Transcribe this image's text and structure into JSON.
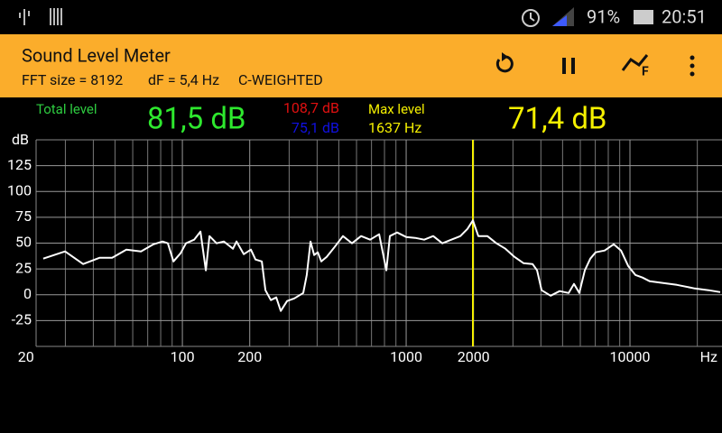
{
  "status_bar": {
    "battery": "91%",
    "time": "20:51"
  },
  "app_bar": {
    "title": "Sound Level Meter",
    "fft_size": "FFT size = 8192",
    "df": "dF = 5,4 Hz",
    "weighting": "C-WEIGHTED"
  },
  "readout": {
    "total_label": "Total level",
    "total_value": "81,5 dB",
    "max_db": "108,7 dB",
    "min_db": "75,1 dB",
    "max_label": "Max level",
    "max_freq": "1637 Hz",
    "max_value": "71,4 dB"
  },
  "chart_data": {
    "type": "line",
    "y_unit": "dB",
    "x_unit": "Hz",
    "log_x": true,
    "grid": true,
    "color": "#ffffff",
    "xlim": [
      22.2,
      25780
    ],
    "ylim": [
      -50,
      150
    ],
    "yticks": [
      -25,
      0,
      25,
      50,
      75,
      100,
      125
    ],
    "xticks": [
      20,
      100,
      200,
      1000,
      2000,
      10000
    ],
    "xgrid": [
      30,
      40,
      50,
      60,
      70,
      80,
      90,
      300,
      400,
      500,
      600,
      700,
      800,
      900,
      3000,
      4000,
      5000,
      6000,
      7000,
      8000,
      9000,
      20000
    ],
    "x": [
      23.9,
      29.9,
      36.0,
      42.6,
      48.5,
      56.2,
      65.3,
      74.3,
      81.5,
      86.1,
      91.2,
      98.2,
      103.8,
      112.8,
      120.4,
      127.3,
      132.1,
      142.2,
      153.1,
      168.2,
      174.6,
      188.0,
      202.4,
      212.1,
      226.4,
      235.0,
      248.5,
      262.6,
      275.2,
      293.6,
      316.2,
      346.7,
      359.7,
      374.0,
      388.0,
      402.6,
      417.7,
      441.6,
      475.5,
      522.0,
      572.8,
      628.6,
      690.0,
      756.9,
      815.3,
      845.7,
      911.3,
      1000,
      1097,
      1204,
      1321,
      1450,
      1591,
      1746,
      1880,
      1987,
      2101,
      2306,
      2530,
      2777,
      3047,
      3344,
      3670,
      3845,
      4027,
      4419,
      4849,
      5322,
      5623,
      5940,
      6283,
      6652,
      7025,
      7709,
      8460,
      9120,
      9818,
      10570,
      11380,
      12270,
      14090,
      16220,
      19500,
      22440,
      25300
    ],
    "values": [
      35.0,
      42.0,
      29.7,
      35.8,
      35.8,
      43.7,
      42.0,
      48.9,
      51.6,
      49.8,
      32.3,
      40.2,
      49.8,
      53.3,
      61.2,
      23.6,
      56.8,
      49.8,
      51.6,
      44.6,
      51.6,
      39.3,
      43.7,
      34.1,
      32.3,
      4.4,
      -5.2,
      -2.6,
      -15.7,
      -6.1,
      -3.5,
      1.7,
      19.2,
      51.6,
      38.5,
      41.1,
      32.3,
      36.7,
      45.4,
      56.8,
      49.8,
      56.8,
      53.3,
      58.6,
      23.6,
      56.8,
      60.3,
      55.9,
      55.1,
      53.3,
      56.8,
      49.8,
      53.3,
      56.8,
      63.8,
      72.0,
      56.8,
      56.8,
      49.8,
      44.6,
      36.7,
      30.6,
      29.7,
      23.6,
      4.4,
      -0.9,
      3.5,
      1.7,
      10.5,
      1.7,
      23.6,
      35.0,
      41.1,
      42.8,
      48.9,
      42.8,
      28.0,
      19.2,
      16.6,
      13.1,
      11.4,
      9.6,
      6.1,
      4.4,
      2.6
    ]
  }
}
